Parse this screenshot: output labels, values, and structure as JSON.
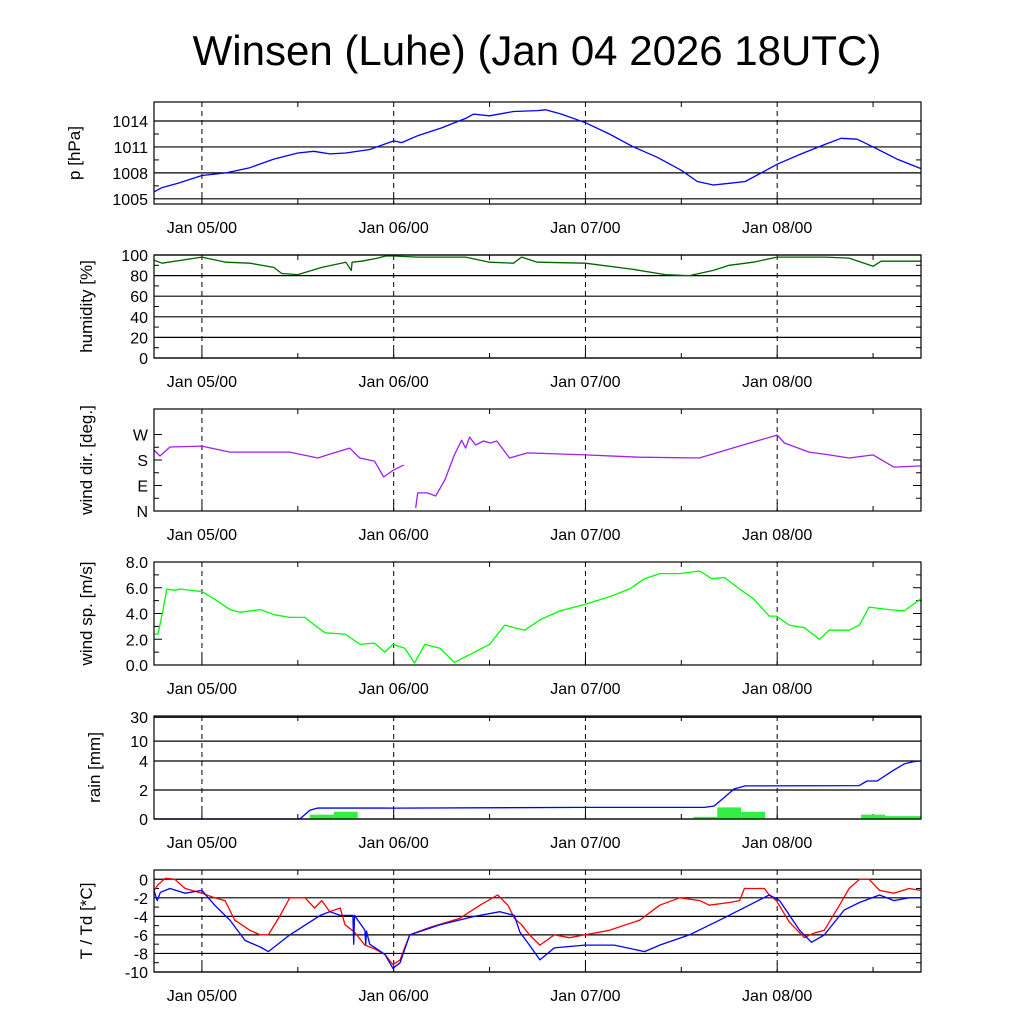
{
  "chart_data": {
    "type": "line",
    "title": "Winsen (Luhe) (Jan 04 2026 18UTC)",
    "x_unit": "hours since Jan 04 18UTC",
    "xlim": [
      0,
      96
    ],
    "x_tick_labels": [
      {
        "label": "Jan 05/00",
        "hour": 6
      },
      {
        "label": "Jan 06/00",
        "hour": 30
      },
      {
        "label": "Jan 07/00",
        "hour": 54
      },
      {
        "label": "Jan 08/00",
        "hour": 78
      }
    ],
    "panels": [
      {
        "id": "pressure",
        "ylabel": "p [hPa]",
        "ylim": [
          1004.4,
          1016.2
        ],
        "grid": true,
        "yticks": [
          {
            "v": 1005,
            "label": "1005"
          },
          {
            "v": 1008,
            "label": "1008"
          },
          {
            "v": 1011,
            "label": "1011"
          },
          {
            "v": 1014,
            "label": "1014"
          }
        ],
        "series": [
          {
            "name": "pressure",
            "color": "#0000ff",
            "x": [
              0,
              1,
              3,
              6,
              9,
              12,
              15,
              18,
              20,
              22,
              24,
              27,
              30,
              31,
              33,
              36,
              39,
              40,
              42,
              45,
              48,
              49,
              51,
              54,
              57,
              60,
              63,
              66,
              68,
              70,
              72,
              74,
              76,
              78,
              81,
              84,
              86,
              88,
              90,
              93,
              96
            ],
            "y": [
              1005.8,
              1006.3,
              1006.8,
              1007.7,
              1008.0,
              1008.6,
              1009.6,
              1010.3,
              1010.5,
              1010.2,
              1010.3,
              1010.7,
              1011.7,
              1011.5,
              1012.3,
              1013.2,
              1014.3,
              1014.8,
              1014.6,
              1015.1,
              1015.2,
              1015.3,
              1014.8,
              1013.8,
              1012.5,
              1011.0,
              1009.8,
              1008.3,
              1007.0,
              1006.6,
              1006.8,
              1007.0,
              1008.0,
              1009.0,
              1010.2,
              1011.3,
              1012.0,
              1011.9,
              1011.0,
              1009.6,
              1008.5
            ]
          }
        ]
      },
      {
        "id": "humidity",
        "ylabel": "humidity [%]",
        "ylim": [
          0,
          100
        ],
        "grid": true,
        "yticks": [
          {
            "v": 0,
            "label": "0"
          },
          {
            "v": 20,
            "label": "20"
          },
          {
            "v": 40,
            "label": "40"
          },
          {
            "v": 60,
            "label": "60"
          },
          {
            "v": 80,
            "label": "80"
          },
          {
            "v": 100,
            "label": "100"
          }
        ],
        "series": [
          {
            "name": "humidity",
            "color": "#006400",
            "x": [
              0,
              1,
              6,
              9,
              12,
              15,
              16,
              18,
              21,
              24,
              24.7,
              24.8,
              26,
              28,
              29,
              30,
              33,
              39,
              42,
              45,
              46,
              48,
              54,
              60,
              64,
              67,
              70,
              72,
              75,
              78,
              84,
              87,
              90,
              91,
              96
            ],
            "y": [
              95,
              92,
              98,
              93,
              92,
              88,
              82,
              81,
              88,
              93,
              85,
              93,
              94,
              97,
              99,
              99,
              98,
              98,
              93,
              92,
              98,
              93,
              92,
              86,
              81,
              80,
              85,
              90,
              93,
              98,
              98,
              97,
              89,
              94,
              94
            ]
          }
        ]
      },
      {
        "id": "wind_direction",
        "ylabel": "wind dir. [deg.]",
        "ylim": [
          0,
          360
        ],
        "grid": false,
        "yticks": [
          {
            "v": 0,
            "label": "N"
          },
          {
            "v": 90,
            "label": "E"
          },
          {
            "v": 180,
            "label": "S"
          },
          {
            "v": 270,
            "label": "W"
          }
        ],
        "series": [
          {
            "name": "wind direction",
            "color": "#a020f0",
            "x": [
              0,
              0.75,
              2,
              6,
              9.5,
              17,
              20.5,
              22,
              24.5,
              25.75,
              27.6,
              28.75,
              30,
              31.25,
              32.4,
              32.75,
              33,
              34.25,
              35.25,
              36.4,
              37.6,
              38.5,
              39,
              39.5,
              40.25,
              41.25,
              42.1,
              42.9,
              44.5,
              46.75,
              54,
              60.75,
              68.25,
              73.25,
              78,
              78.9,
              82,
              84.5,
              87,
              90,
              92.6,
              96
            ],
            "y": [
              215,
              194,
              226,
              229,
              208,
              208,
              187,
              201,
              222,
              187,
              176,
              120,
              145,
              162,
              null,
              11,
              64,
              64,
              53,
              109,
              198,
              250,
              222,
              261,
              233,
              247,
              240,
              247,
              187,
              205,
              198,
              190,
              187,
              229,
              268,
              240,
              208,
              198,
              187,
              198,
              155,
              159
            ]
          }
        ]
      },
      {
        "id": "wind_speed",
        "ylabel": "wind sp. [m/s]",
        "ylim": [
          0,
          8
        ],
        "grid": false,
        "yticks": [
          {
            "v": 0,
            "label": "0.0"
          },
          {
            "v": 2,
            "label": "2.0"
          },
          {
            "v": 4,
            "label": "4.0"
          },
          {
            "v": 6,
            "label": "6.0"
          },
          {
            "v": 8,
            "label": "8.0"
          }
        ],
        "series": [
          {
            "name": "wind speed",
            "color": "#00ff00",
            "x": [
              0,
              0.5,
              1.1,
              1.6,
              2.6,
              3.3,
              6,
              7.6,
              9.5,
              10.8,
              13.3,
              15.1,
              17,
              18.9,
              20.1,
              21.4,
              23.9,
              25.8,
              27.6,
              28.9,
              29.9,
              31.4,
              32.6,
              33.9,
              35.8,
              37.6,
              39.5,
              42,
              43.9,
              45.1,
              46.4,
              48.3,
              50.8,
              53.9,
              57,
              59.5,
              61.4,
              63.3,
              65.8,
              68.3,
              69.8,
              71.4,
              73.3,
              75.1,
              77,
              77.9,
              79.5,
              81.4,
              83.3,
              84.5,
              87,
              88.3,
              89.5,
              92,
              93.9,
              95.9
            ],
            "y": [
              2.4,
              2.4,
              4.2,
              5.9,
              5.8,
              5.9,
              5.7,
              5.1,
              4.3,
              4.1,
              4.3,
              3.9,
              3.7,
              3.7,
              3.1,
              2.5,
              2.4,
              1.6,
              1.7,
              1.0,
              1.6,
              1.3,
              0.15,
              1.6,
              1.3,
              0.2,
              0.8,
              1.6,
              3.1,
              2.9,
              2.7,
              3.5,
              4.2,
              4.7,
              5.3,
              5.9,
              6.7,
              7.1,
              7.1,
              7.3,
              6.7,
              6.8,
              5.9,
              5.1,
              3.8,
              3.8,
              3.1,
              2.9,
              2.0,
              2.7,
              2.7,
              3.1,
              4.5,
              4.3,
              4.2,
              5.1
            ]
          }
        ]
      },
      {
        "id": "rain",
        "ylabel": "rain [mm]",
        "ylim": [
          0,
          35
        ],
        "scale": "linear to 4, log above",
        "grid": true,
        "yticks": [
          {
            "v": 0,
            "label": "0"
          },
          {
            "v": 2,
            "label": "2"
          },
          {
            "v": 4,
            "label": "4"
          },
          {
            "v": 10,
            "label": "10"
          },
          {
            "v": 30,
            "label": "30"
          }
        ],
        "series": [
          {
            "name": "accumulated rain",
            "color": "#0000ff",
            "x": [
              0,
              18.25,
              19.5,
              20.5,
              30,
              54,
              68.9,
              70.1,
              71.4,
              72.6,
              74,
              88.25,
              89.25,
              90.5,
              92.4,
              93.9,
              95,
              96
            ],
            "y": [
              0,
              0,
              0.6,
              0.76,
              0.75,
              0.8,
              0.8,
              0.9,
              1.5,
              2.07,
              2.28,
              2.3,
              2.62,
              2.62,
              3.3,
              3.8,
              3.95,
              4.0
            ]
          }
        ],
        "bars": {
          "name": "rain per 3h",
          "color": "#33ee44",
          "start": [
            19.5,
            22.5,
            67.5,
            70.5,
            73.5,
            88.5,
            91.5
          ],
          "end": [
            22.5,
            25.5,
            70.5,
            73.5,
            76.5,
            91.5,
            96
          ],
          "values": [
            0.3,
            0.5,
            0.15,
            0.8,
            0.5,
            0.3,
            0.2
          ]
        }
      },
      {
        "id": "temperature",
        "ylabel": "T / Td [*C]",
        "ylim": [
          -10,
          1
        ],
        "grid": true,
        "yticks": [
          {
            "v": 0,
            "label": "0"
          },
          {
            "v": -2,
            "label": "-2"
          },
          {
            "v": -4,
            "label": "-4"
          },
          {
            "v": -6,
            "label": "-6"
          },
          {
            "v": -8,
            "label": "-8"
          },
          {
            "v": -10,
            "label": "-10"
          }
        ],
        "series": [
          {
            "name": "temperature",
            "color": "#ff0000",
            "x": [
              0,
              0.5,
              1.4,
              2.6,
              3.9,
              6,
              7.6,
              8.9,
              10.1,
              12,
              13.3,
              14.3,
              15.8,
              17,
              18.9,
              20.1,
              21,
              22,
              23.3,
              23.9,
              25.1,
              26.4,
              27.6,
              28.9,
              29.9,
              30.8,
              32,
              34.5,
              38.3,
              40.8,
              43,
              44.3,
              45.1,
              46,
              47,
              48.3,
              50.1,
              52,
              53.9,
              57,
              60.8,
              63.3,
              65.8,
              68.3,
              69.5,
              72,
              73.3,
              73.9,
              76.4,
              77,
              77.9,
              79.5,
              81.4,
              82.6,
              83.9,
              85.8,
              87,
              88.3,
              89.5,
              90.8,
              92.6,
              94.5,
              95.9
            ],
            "y": [
              -1.2,
              -0.6,
              0.1,
              0,
              -1.0,
              -1.5,
              -2.0,
              -2.3,
              -4.4,
              -5.5,
              -6.0,
              -6.0,
              -3.9,
              -2.0,
              -2.0,
              -3.1,
              -2.3,
              -3.5,
              -3.1,
              -4.9,
              -5.7,
              -7.1,
              -7.5,
              -8.1,
              -9.2,
              -8.7,
              -6.0,
              -5.2,
              -4.2,
              -2.8,
              -1.7,
              -2.8,
              -4.2,
              -4.9,
              -6.0,
              -7.1,
              -6.0,
              -6.3,
              -6.0,
              -5.5,
              -4.4,
              -2.8,
              -2.0,
              -2.3,
              -2.8,
              -2.5,
              -2.3,
              -1.0,
              -1.0,
              -1.7,
              -2.3,
              -4.6,
              -6.3,
              -5.8,
              -5.5,
              -2.8,
              -1.0,
              0,
              0,
              -1.2,
              -1.5,
              -1.0,
              -1.2
            ]
          },
          {
            "name": "dew point",
            "color": "#0000ff",
            "x": [
              0,
              0.4,
              0.8,
              2,
              3.9,
              6,
              7.6,
              9.5,
              11.4,
              13.3,
              14.3,
              17,
              20.8,
              22,
              23.3,
              24.9,
              25,
              25.1,
              26.4,
              26.5,
              26.6,
              27,
              28.9,
              29.9,
              30.8,
              32,
              35.8,
              40.1,
              43.3,
              45.1,
              45.8,
              47,
              48.3,
              50.1,
              53.9,
              57.6,
              61.4,
              63.3,
              67,
              70.8,
              74.5,
              77,
              78.3,
              80.8,
              82.3,
              83.9,
              86.4,
              88.3,
              90.8,
              92.6,
              94.5,
              95.9
            ],
            "y": [
              -1.2,
              -2.3,
              -1.4,
              -1.0,
              -1.5,
              -1.2,
              -2.8,
              -4.4,
              -6.6,
              -7.3,
              -7.8,
              -6.0,
              -3.9,
              -3.5,
              -3.9,
              -3.9,
              -7.0,
              -3.9,
              -5.5,
              -7.0,
              -5.6,
              -7.0,
              -8.1,
              -9.6,
              -9.0,
              -6.0,
              -4.9,
              -4.0,
              -3.5,
              -3.9,
              -5.7,
              -7.1,
              -8.7,
              -7.4,
              -7.1,
              -7.1,
              -7.8,
              -7.1,
              -6.0,
              -4.4,
              -2.8,
              -1.7,
              -2.3,
              -5.5,
              -6.8,
              -6.0,
              -3.3,
              -2.5,
              -1.7,
              -2.3,
              -2.0,
              -2.0
            ]
          }
        ]
      }
    ]
  }
}
